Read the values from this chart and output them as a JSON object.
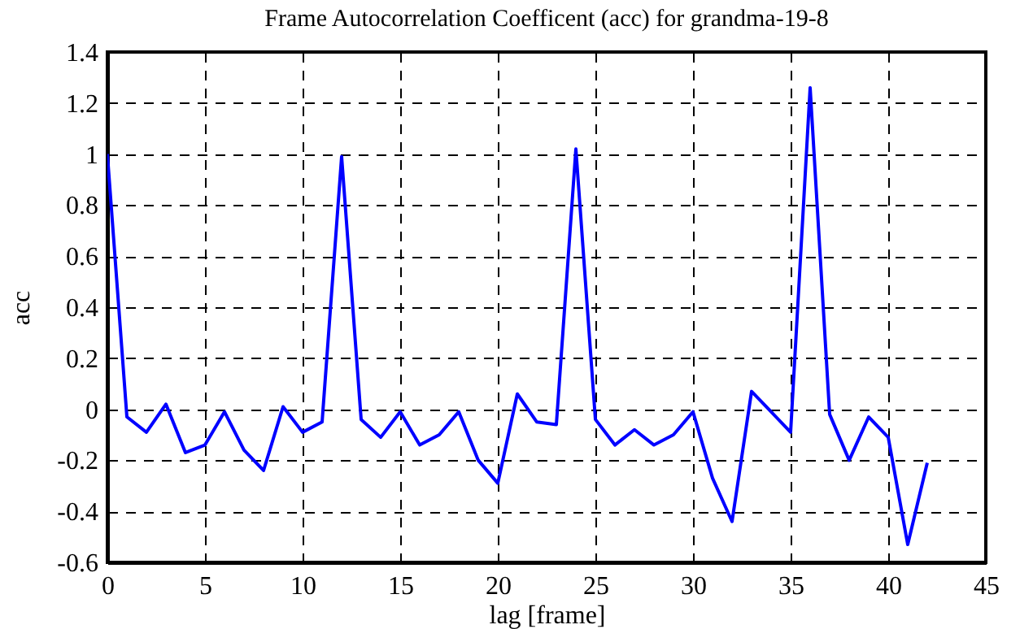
{
  "chart_data": {
    "type": "line",
    "title": "Frame Autocorrelation Coefficent (acc) for grandma-19-8",
    "xlabel": "lag [frame]",
    "ylabel": "acc",
    "x": [
      0,
      1,
      2,
      3,
      4,
      5,
      6,
      7,
      8,
      9,
      10,
      11,
      12,
      13,
      14,
      15,
      16,
      17,
      18,
      19,
      20,
      21,
      22,
      23,
      24,
      25,
      26,
      27,
      28,
      29,
      30,
      31,
      32,
      33,
      34,
      35,
      36,
      37,
      38,
      39,
      40,
      41,
      42
    ],
    "series": [
      {
        "color": "#0000ff",
        "values": [
          1.0,
          -0.03,
          -0.09,
          0.02,
          -0.17,
          -0.14,
          -0.01,
          -0.16,
          -0.24,
          0.01,
          -0.09,
          -0.05,
          0.99,
          -0.04,
          -0.11,
          -0.01,
          -0.14,
          -0.1,
          -0.01,
          -0.2,
          -0.29,
          0.06,
          -0.05,
          -0.06,
          1.02,
          -0.04,
          -0.14,
          -0.08,
          -0.14,
          -0.1,
          -0.01,
          -0.27,
          -0.44,
          0.07,
          -0.01,
          -0.09,
          1.26,
          -0.02,
          -0.2,
          -0.03,
          -0.11,
          -0.53,
          -0.21
        ]
      }
    ],
    "xlim": [
      0,
      45
    ],
    "xticks": [
      0,
      5,
      10,
      15,
      20,
      25,
      30,
      35,
      40,
      45
    ],
    "ylim": [
      -0.6,
      1.4
    ],
    "yticks": [
      -0.6,
      -0.4,
      -0.2,
      0,
      0.2,
      0.4,
      0.6,
      0.8,
      1,
      1.2,
      1.4
    ],
    "grid": true,
    "legend": false,
    "marker": "none",
    "line_style": "solid"
  }
}
